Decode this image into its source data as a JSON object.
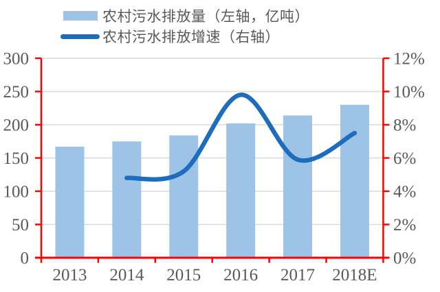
{
  "legend": {
    "items": [
      {
        "label": "农村污水排放量（左轴，亿吨）",
        "type": "bar"
      },
      {
        "label": "农村污水排放增速（右轴）",
        "type": "line"
      }
    ]
  },
  "colors": {
    "background": "#FFFFFF",
    "bar": "#9DC3E6",
    "line": "#1E6CBE",
    "axis": "#FF0000",
    "grid": "#D9D9D9",
    "text": "#595959"
  },
  "chart_data": {
    "type": "combo",
    "categories": [
      "2013",
      "2014",
      "2015",
      "2016",
      "2017",
      "2018E"
    ],
    "series": [
      {
        "name": "农村污水排放量（左轴，亿吨）",
        "type": "bar",
        "axis": "left",
        "unit": "亿吨",
        "values": [
          167,
          175,
          184,
          202,
          214,
          230
        ]
      },
      {
        "name": "农村污水排放增速（右轴）",
        "type": "line",
        "axis": "right",
        "unit": "%",
        "smooth": true,
        "values": [
          null,
          4.8,
          5.2,
          9.8,
          5.9,
          7.5
        ]
      }
    ],
    "left_axis": {
      "min": 0,
      "max": 300,
      "step": 50,
      "tick_labels": [
        "0",
        "50",
        "100",
        "150",
        "200",
        "250",
        "300"
      ]
    },
    "right_axis": {
      "min": 0,
      "max": 12,
      "step": 2,
      "tick_labels": [
        "0%",
        "2%",
        "4%",
        "6%",
        "8%",
        "10%",
        "12%"
      ]
    },
    "grid": true,
    "legend_position": "top"
  }
}
